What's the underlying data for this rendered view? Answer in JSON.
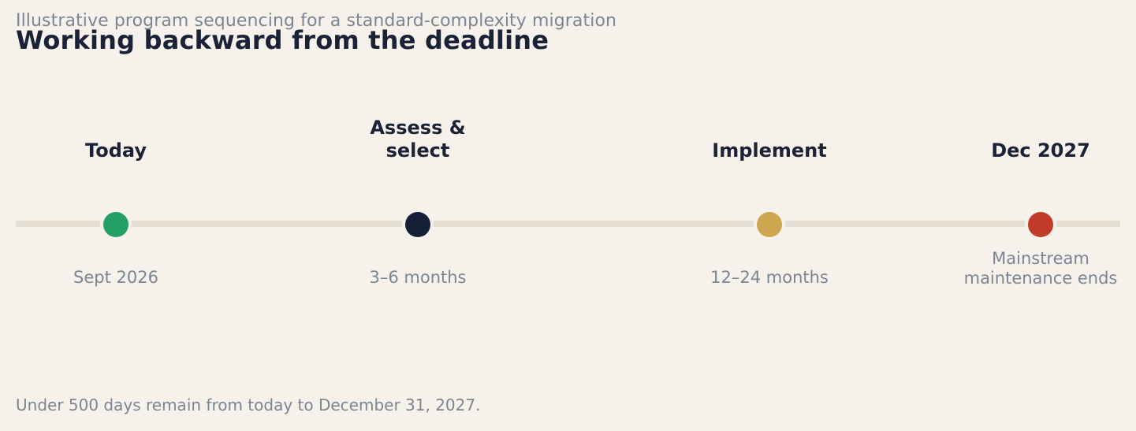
{
  "header": {
    "subtitle": "Illustrative program sequencing for a standard-complexity migration",
    "title": "Working backward from the deadline"
  },
  "timeline": {
    "milestones": [
      {
        "label": "Today",
        "sublabel": "Sept 2026",
        "color": "#22a065"
      },
      {
        "label": "Assess & select",
        "sublabel": "3–6 months",
        "color": "#141e36"
      },
      {
        "label": "Implement",
        "sublabel": "12–24 months",
        "color": "#cfa650"
      },
      {
        "label": "Dec 2027",
        "sublabel": "Mainstream maintenance ends",
        "color": "#c23a28"
      }
    ]
  },
  "footnote": "Under 500 days remain from today to December 31, 2027."
}
